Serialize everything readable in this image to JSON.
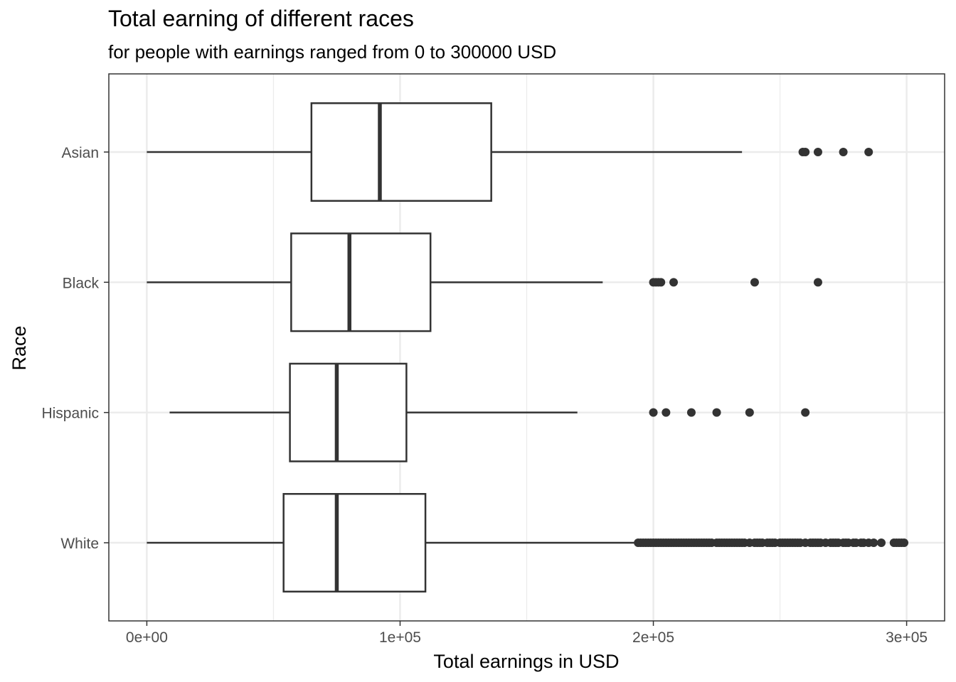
{
  "chart_data": {
    "type": "boxplot",
    "title": "Total earning of different races",
    "subtitle": "for people with earnings ranged from 0 to 300000 USD",
    "xlabel": "Total earnings in USD",
    "ylabel": "Race",
    "xlim": [
      -15000,
      315000
    ],
    "x_ticks": [
      {
        "value": 0,
        "label": "0e+00"
      },
      {
        "value": 100000,
        "label": "1e+05"
      },
      {
        "value": 200000,
        "label": "2e+05"
      },
      {
        "value": 300000,
        "label": "3e+05"
      }
    ],
    "x_minor_ticks": [
      50000,
      150000,
      250000
    ],
    "grid": true,
    "categories": [
      "Asian",
      "Black",
      "Hispanic",
      "White"
    ],
    "boxes": [
      {
        "category": "Asian",
        "whisker_low": 0,
        "q1": 65000,
        "median": 92000,
        "q3": 136000,
        "whisker_high": 235000,
        "outliers": [
          259000,
          260000,
          265000,
          275000,
          285000
        ]
      },
      {
        "category": "Black",
        "whisker_low": 0,
        "q1": 57000,
        "median": 80000,
        "q3": 112000,
        "whisker_high": 180000,
        "outliers": [
          200000,
          201000,
          202000,
          203000,
          208000,
          240000,
          265000
        ]
      },
      {
        "category": "Hispanic",
        "whisker_low": 9000,
        "q1": 56500,
        "median": 75000,
        "q3": 102500,
        "whisker_high": 170000,
        "outliers": [
          200000,
          205000,
          215000,
          225000,
          238000,
          260000
        ]
      },
      {
        "category": "White",
        "whisker_low": 0,
        "q1": 54000,
        "median": 75000,
        "q3": 110000,
        "whisker_high": 193000,
        "outliers": [
          194000,
          195000,
          196000,
          197000,
          198000,
          199000,
          200000,
          201000,
          202000,
          203000,
          204000,
          205000,
          206000,
          207000,
          208000,
          209000,
          210000,
          211000,
          212000,
          213000,
          214000,
          215000,
          216000,
          217000,
          218000,
          219000,
          220000,
          221000,
          222000,
          223000,
          225000,
          226000,
          227000,
          228000,
          229000,
          230000,
          231000,
          232000,
          233000,
          234000,
          235000,
          236000,
          238000,
          240000,
          241000,
          242000,
          243000,
          245000,
          246000,
          247000,
          248000,
          250000,
          251000,
          252000,
          253000,
          254000,
          255000,
          256000,
          257000,
          258000,
          260000,
          262000,
          263000,
          264000,
          265000,
          266000,
          268000,
          270000,
          271000,
          272000,
          273000,
          275000,
          276000,
          277000,
          279000,
          280000,
          282000,
          283000,
          285000,
          287000,
          290000,
          295000,
          296000,
          297000,
          298000,
          299000
        ]
      }
    ],
    "colors": {
      "box_stroke": "#333333",
      "point": "#333333",
      "grid": "#ebebeb",
      "panel_border": "#333333",
      "tick_text": "#4d4d4d"
    }
  }
}
